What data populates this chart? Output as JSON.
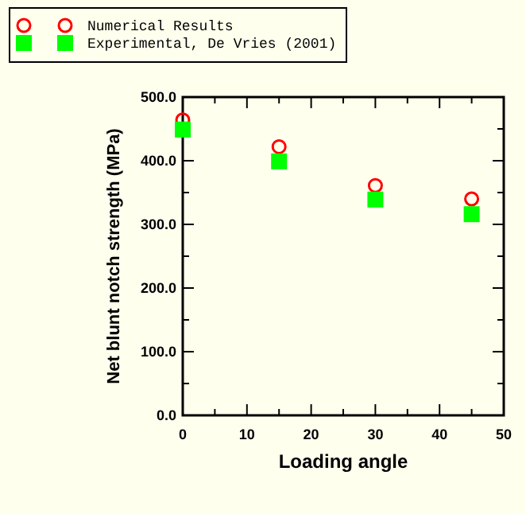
{
  "chart_data": {
    "type": "scatter",
    "xlabel": "Loading angle",
    "ylabel": "Net blunt notch strength (MPa)",
    "x": [
      0,
      15,
      30,
      45
    ],
    "series": [
      {
        "name": "Numerical Results",
        "color": "#ff0000",
        "values": [
          464,
          422,
          361,
          340
        ],
        "marker": "circle"
      },
      {
        "name": "Experimental, De Vries (2001)",
        "color": "#00ff00",
        "values": [
          449,
          399,
          339,
          316
        ],
        "marker": "square"
      }
    ],
    "xlim": [
      0,
      50
    ],
    "xticks": [
      0,
      10,
      20,
      30,
      40,
      50
    ],
    "ylim": [
      0,
      500
    ],
    "yticks": [
      {
        "value": 0,
        "label": "0.0"
      },
      {
        "value": 100,
        "label": "100.0"
      },
      {
        "value": 200,
        "label": "200.0"
      },
      {
        "value": 300,
        "label": "300.0"
      },
      {
        "value": 400,
        "label": "400.0"
      },
      {
        "value": 500,
        "label": "500.0"
      }
    ],
    "grid": false,
    "legend": "top left"
  }
}
